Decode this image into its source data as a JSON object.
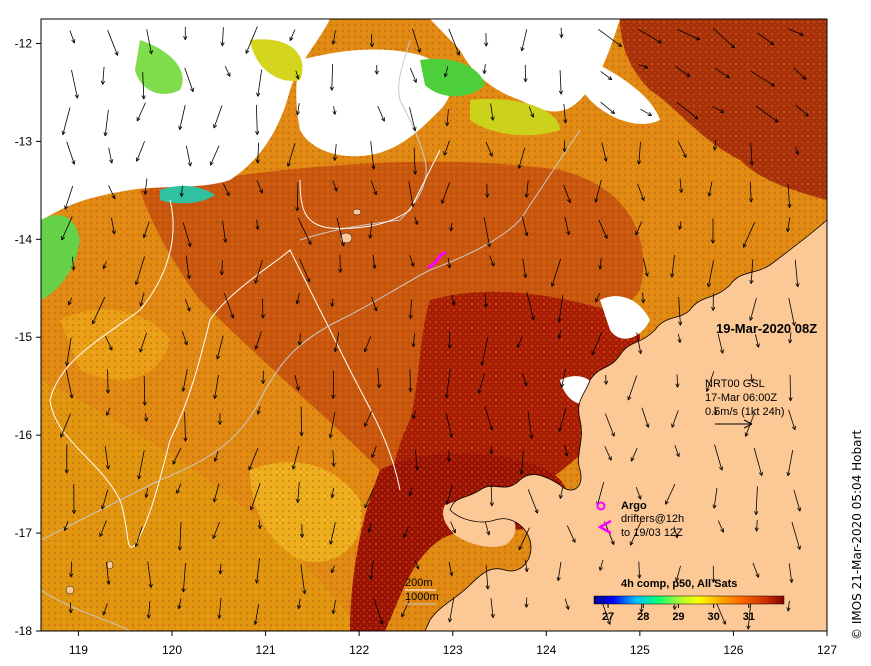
{
  "map": {
    "x_ticks": [
      "119",
      "120",
      "121",
      "122",
      "123",
      "124",
      "125",
      "126",
      "127"
    ],
    "y_ticks": [
      "-12",
      "-13",
      "-14",
      "-15",
      "-16",
      "-17",
      "-18"
    ],
    "lon_range": [
      118.6,
      127
    ],
    "lat_range": [
      -18,
      -11.75
    ]
  },
  "date_label": "19-Mar-2020 08Z",
  "current_legend": {
    "line1": "NRT00 GSL",
    "line2": "17-Mar 06:00Z",
    "line3": "0.5m/s (1kt 24h)"
  },
  "argo_legend": {
    "argo": "Argo",
    "drifters1": "drifters@12h",
    "drifters2": "to 19/03 12Z",
    "argo_color": "#ff00ff"
  },
  "depth_legend": {
    "c200": "200m",
    "c1000": "1000m"
  },
  "colorbar": {
    "title": "4h comp, p50, All Sats",
    "ticks": [
      "27",
      "28",
      "29",
      "30",
      "31"
    ],
    "range": [
      26.6,
      32.0
    ],
    "colors": [
      "#00008b",
      "#0000ff",
      "#00bfff",
      "#00ff7f",
      "#adff2f",
      "#ffff00",
      "#ffa500",
      "#ff6600",
      "#cc3300",
      "#8b0000"
    ]
  },
  "credit": "© IMOS 21-Mar-2020 05:04 Hobart"
}
